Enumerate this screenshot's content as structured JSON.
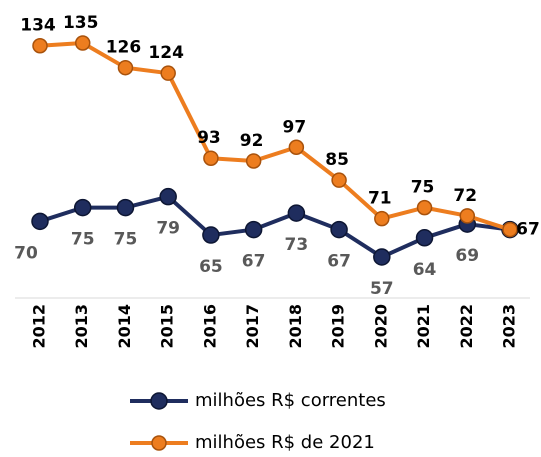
{
  "chart_data": {
    "type": "line",
    "categories": [
      "2012",
      "2013",
      "2014",
      "2015",
      "2016",
      "2017",
      "2018",
      "2019",
      "2020",
      "2021",
      "2022",
      "2023"
    ],
    "series": [
      {
        "name": "milhões R$ correntes",
        "color": "#1f2d5e",
        "values": [
          70,
          75,
          75,
          79,
          65,
          67,
          73,
          67,
          57,
          64,
          69,
          67
        ]
      },
      {
        "name": "milhões R$ de 2021",
        "color": "#ed7d1f",
        "values": [
          134,
          135,
          126,
          124,
          93,
          92,
          97,
          85,
          71,
          75,
          72,
          67
        ]
      }
    ],
    "legend": "bottom"
  }
}
